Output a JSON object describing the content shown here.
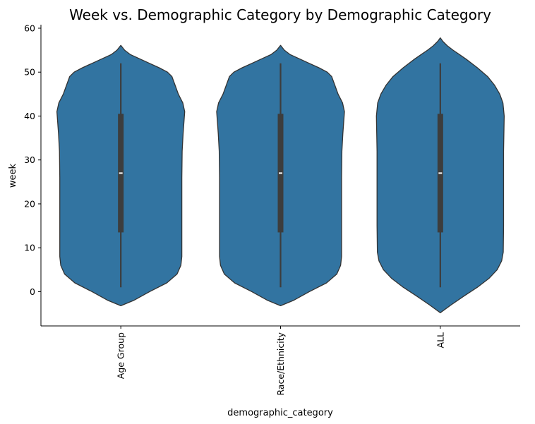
{
  "chart_data": {
    "type": "violin",
    "title": "Week vs. Demographic Category by Demographic Category",
    "xlabel": "demographic_category",
    "ylabel": "week",
    "categories": [
      "Age Group",
      "Race/Ethnicity",
      "ALL"
    ],
    "ylim": [
      -7.8,
      60.8
    ],
    "yticks": [
      0,
      10,
      20,
      30,
      40,
      50,
      60
    ],
    "grid": false,
    "legend": "none",
    "color": "#3274a1",
    "edge_color": "#333333",
    "series": [
      {
        "category": "Age Group",
        "min": 1,
        "q1": 13.5,
        "median": 27,
        "q3": 40.5,
        "max": 52,
        "density": [
          [
            -3.2,
            0.0
          ],
          [
            -2,
            0.2
          ],
          [
            0,
            0.45
          ],
          [
            2,
            0.72
          ],
          [
            4,
            0.88
          ],
          [
            6,
            0.94
          ],
          [
            8,
            0.955
          ],
          [
            14,
            0.955
          ],
          [
            20,
            0.955
          ],
          [
            26,
            0.955
          ],
          [
            32,
            0.96
          ],
          [
            36,
            0.975
          ],
          [
            39,
            0.99
          ],
          [
            41,
            1.0
          ],
          [
            43,
            0.97
          ],
          [
            45,
            0.9
          ],
          [
            47,
            0.85
          ],
          [
            49,
            0.8
          ],
          [
            50,
            0.73
          ],
          [
            51,
            0.6
          ],
          [
            52,
            0.45
          ],
          [
            53,
            0.3
          ],
          [
            54,
            0.15
          ],
          [
            55,
            0.06
          ],
          [
            56.1,
            0.0
          ]
        ]
      },
      {
        "category": "Race/Ethnicity",
        "min": 1,
        "q1": 13.5,
        "median": 27,
        "q3": 40.5,
        "max": 52,
        "density": [
          [
            -3.2,
            0.0
          ],
          [
            -2,
            0.2
          ],
          [
            0,
            0.45
          ],
          [
            2,
            0.72
          ],
          [
            4,
            0.88
          ],
          [
            6,
            0.94
          ],
          [
            8,
            0.955
          ],
          [
            14,
            0.955
          ],
          [
            20,
            0.955
          ],
          [
            26,
            0.955
          ],
          [
            32,
            0.96
          ],
          [
            36,
            0.975
          ],
          [
            39,
            0.99
          ],
          [
            41,
            1.0
          ],
          [
            43,
            0.97
          ],
          [
            45,
            0.9
          ],
          [
            47,
            0.85
          ],
          [
            49,
            0.8
          ],
          [
            50,
            0.73
          ],
          [
            51,
            0.6
          ],
          [
            52,
            0.45
          ],
          [
            53,
            0.3
          ],
          [
            54,
            0.15
          ],
          [
            55,
            0.06
          ],
          [
            56.1,
            0.0
          ]
        ]
      },
      {
        "category": "ALL",
        "min": 1,
        "q1": 13.5,
        "median": 27,
        "q3": 40.5,
        "max": 52,
        "density": [
          [
            -4.8,
            0.0
          ],
          [
            -3,
            0.17
          ],
          [
            -1,
            0.37
          ],
          [
            1,
            0.58
          ],
          [
            3,
            0.76
          ],
          [
            5,
            0.89
          ],
          [
            7,
            0.96
          ],
          [
            9,
            0.985
          ],
          [
            15,
            0.99
          ],
          [
            25,
            0.99
          ],
          [
            32,
            0.99
          ],
          [
            36,
            0.995
          ],
          [
            40,
            1.0
          ],
          [
            43,
            0.98
          ],
          [
            45,
            0.93
          ],
          [
            47,
            0.85
          ],
          [
            49,
            0.74
          ],
          [
            51,
            0.58
          ],
          [
            53,
            0.4
          ],
          [
            54,
            0.3
          ],
          [
            55,
            0.2
          ],
          [
            56,
            0.11
          ],
          [
            57,
            0.04
          ],
          [
            57.8,
            0.0
          ]
        ]
      }
    ]
  }
}
